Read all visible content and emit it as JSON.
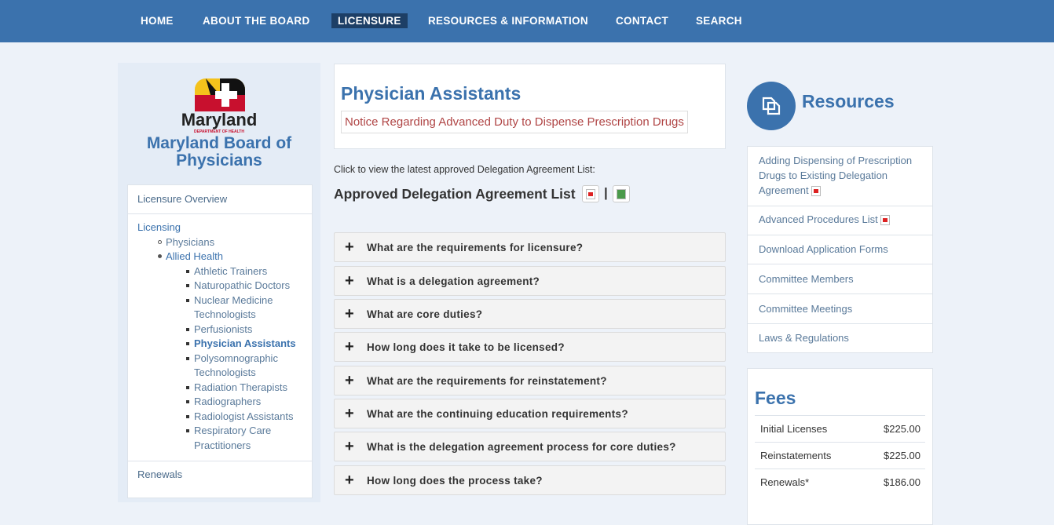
{
  "nav": {
    "items": [
      "HOME",
      "ABOUT THE BOARD",
      "LICENSURE",
      "RESOURCES & INFORMATION",
      "CONTACT",
      "SEARCH"
    ],
    "active": "LICENSURE"
  },
  "brand": {
    "logo_word": "Maryland",
    "logo_sub": "DEPARTMENT OF HEALTH",
    "title_line1": "Maryland Board of",
    "title_line2": "Physicians"
  },
  "sidebar": {
    "overview": "Licensure Overview",
    "licensing": "Licensing",
    "physicians": "Physicians",
    "allied": "Allied Health",
    "allied_items": [
      "Athletic Trainers",
      "Naturopathic Doctors",
      "Nuclear Medicine",
      "Technologists",
      "Perfusionists",
      "Physician Assistants",
      "Polysomnographic",
      "Technologists",
      "Radiation Therapists",
      "Radiographers",
      "Radiologist Assistants",
      "Respiratory Care",
      "Practitioners"
    ],
    "active": "Physician Assistants",
    "renewals": "Renewals"
  },
  "main": {
    "title": "Physician Assistants",
    "notice": "Notice Regarding Advanced Duty to Dispense Prescription Drugs",
    "click_text": "Click to view the latest approved Delegation Agreement List:",
    "list_title": "Approved Delegation Agreement List",
    "separator": "|",
    "faqs": [
      "What are the requirements for licensure?",
      "What is a delegation agreement?",
      "What are core duties?",
      "How long does it take to be licensed?",
      "What are the requirements for reinstatement?",
      "What are the continuing education requirements?",
      "What is the delegation agreement process for core duties?",
      "How long does the process take?"
    ]
  },
  "resources": {
    "title": "Resources",
    "icon": "documents-icon",
    "items": [
      "Adding Dispensing of Prescription Drugs to Existing Delegation Agreement",
      "Advanced Procedures List",
      "Download Application Forms",
      "Committee Members",
      "Committee Meetings",
      "Laws & Regulations"
    ]
  },
  "fees": {
    "title": "Fees",
    "rows": [
      {
        "label": "Initial Licenses",
        "amount": "$225.00"
      },
      {
        "label": "Reinstatements",
        "amount": "$225.00"
      },
      {
        "label": "Renewals*",
        "amount": "$186.00"
      }
    ]
  },
  "colors": {
    "nav": "#3b72ad",
    "active_nav": "#1d3f66",
    "accent": "#3b72ad",
    "notice": "#b04545"
  }
}
